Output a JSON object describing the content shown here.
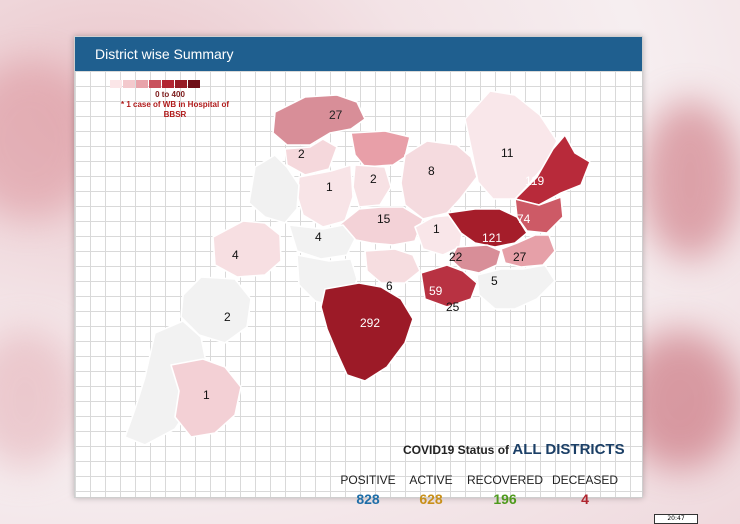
{
  "header": {
    "title": "District wise Summary"
  },
  "legend": {
    "colors": [
      "#fbe6e8",
      "#f3c9cd",
      "#e8a3aa",
      "#c9515d",
      "#b22431",
      "#961a24",
      "#6f0e17"
    ],
    "range": "0 to 400",
    "note": "* 1 case of WB in Hospital of BBSR"
  },
  "districts": [
    {
      "label": "27"
    },
    {
      "label": "2"
    },
    {
      "label": "1"
    },
    {
      "label": "2"
    },
    {
      "label": "8"
    },
    {
      "label": "11"
    },
    {
      "label": "119"
    },
    {
      "label": "15"
    },
    {
      "label": "1"
    },
    {
      "label": "4"
    },
    {
      "label": "74"
    },
    {
      "label": "121"
    },
    {
      "label": "4"
    },
    {
      "label": "22"
    },
    {
      "label": "27"
    },
    {
      "label": "6"
    },
    {
      "label": "59"
    },
    {
      "label": "5"
    },
    {
      "label": "25"
    },
    {
      "label": "2"
    },
    {
      "label": "292"
    },
    {
      "label": "1"
    }
  ],
  "status": {
    "title_prefix": "COVID19 Status of",
    "title_emphasis": "ALL DISTRICTS",
    "positive": {
      "label": "POSITIVE",
      "value": "828",
      "color": "#1f6ea8"
    },
    "active": {
      "label": "ACTIVE",
      "value": "628",
      "color": "#c8901a"
    },
    "recovered": {
      "label": "RECOVERED",
      "value": "196",
      "color": "#4e9a1c"
    },
    "deceased": {
      "label": "DECEASED",
      "value": "4",
      "color": "#b0242e"
    }
  },
  "corner_text": "20:47"
}
